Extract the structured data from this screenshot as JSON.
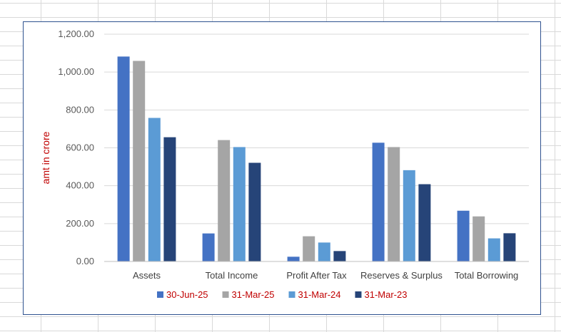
{
  "chart_data": {
    "type": "bar",
    "categories": [
      "Assets",
      "Total Income",
      "Profit After Tax",
      "Reserves & Surplus",
      "Total Borrowing"
    ],
    "series": [
      {
        "name": "30-Jun-25",
        "color": "#4472c4",
        "values": [
          1082,
          148,
          25,
          627,
          268
        ]
      },
      {
        "name": "31-Mar-25",
        "color": "#a5a5a5",
        "values": [
          1059,
          641,
          133,
          604,
          238
        ]
      },
      {
        "name": "31-Mar-24",
        "color": "#5b9bd5",
        "values": [
          758,
          604,
          100,
          482,
          122
        ]
      },
      {
        "name": "31-Mar-23",
        "color": "#264478",
        "values": [
          656,
          521,
          55,
          408,
          149
        ]
      }
    ],
    "ylabel": "amt in crore",
    "ylabel_color": "#c00000",
    "legend_text_color": "#c00000",
    "ylim": [
      0,
      1200
    ],
    "yticks": [
      "0.00",
      "200.00",
      "400.00",
      "600.00",
      "800.00",
      "1,000.00",
      "1,200.00"
    ],
    "grid": true,
    "legend_position": "bottom"
  }
}
